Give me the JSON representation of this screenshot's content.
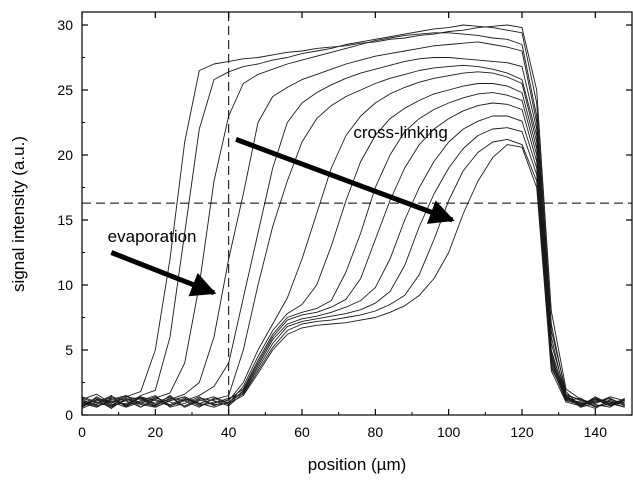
{
  "chart_data": {
    "type": "line",
    "title": "",
    "xlabel": "position (µm)",
    "ylabel": "signal intensity (a.u.)",
    "xlim": [
      0,
      150
    ],
    "ylim": [
      0,
      31
    ],
    "xticks": [
      0,
      20,
      40,
      60,
      80,
      100,
      120,
      140
    ],
    "yticks": [
      0,
      5,
      10,
      15,
      20,
      25,
      30
    ],
    "x_tick_labels": [
      "0",
      "20",
      "40",
      "60",
      "80",
      "100",
      "120",
      "140"
    ],
    "y_tick_labels": [
      "0",
      "5",
      "10",
      "15",
      "20",
      "25",
      "30"
    ],
    "grid": false,
    "legend": "none",
    "reference_lines": [
      {
        "orientation": "vertical",
        "value": 40,
        "style": "dashed"
      },
      {
        "orientation": "horizontal",
        "value": 16.3,
        "style": "dashed"
      }
    ],
    "annotations": [
      {
        "text": "cross-linking",
        "x": 74,
        "y": 21.3,
        "arrow_from": [
          42,
          21.2
        ],
        "arrow_to": [
          101,
          15
        ]
      },
      {
        "text": "evaporation",
        "x": 7,
        "y": 13.3,
        "arrow_from": [
          8,
          12.5
        ],
        "arrow_to": [
          36,
          9.4
        ]
      }
    ],
    "series": [
      {
        "x": [
          0,
          4,
          8,
          12,
          16,
          20,
          24,
          28,
          32,
          36,
          40,
          44,
          48,
          52,
          56,
          60,
          64,
          68,
          72,
          76,
          80,
          84,
          88,
          92,
          96,
          100,
          104,
          108,
          112,
          116,
          120,
          124,
          128,
          132,
          136,
          140,
          144,
          148
        ],
        "y": [
          1.2,
          1.6,
          0.9,
          1.4,
          1.8,
          5,
          12,
          21,
          26.5,
          27,
          27.2,
          27.4,
          27.5,
          27.7,
          27.9,
          28,
          28.2,
          28.3,
          28.4,
          28.6,
          28.7,
          28.9,
          29,
          29.2,
          29.3,
          29.5,
          29.6,
          29.8,
          29.9,
          30,
          29.8,
          25,
          8,
          2,
          1.2,
          0.9,
          1.4,
          1.1
        ]
      },
      {
        "x": [
          0,
          4,
          8,
          12,
          16,
          20,
          24,
          28,
          32,
          36,
          40,
          44,
          48,
          52,
          56,
          60,
          64,
          68,
          72,
          76,
          80,
          84,
          88,
          92,
          96,
          100,
          104,
          108,
          112,
          116,
          120,
          124,
          128,
          132,
          136,
          140,
          144,
          148
        ],
        "y": [
          0.8,
          1.1,
          1.3,
          0.7,
          1.5,
          1.9,
          6,
          14,
          22,
          25.8,
          26.4,
          26.8,
          27,
          27.3,
          27.5,
          27.8,
          28,
          28.2,
          28.5,
          28.7,
          28.9,
          29.1,
          29.3,
          29.5,
          29.7,
          29.8,
          30,
          29.9,
          29.8,
          29.6,
          29.4,
          24,
          7,
          1.5,
          0.8,
          1.2,
          0.7,
          1
        ]
      },
      {
        "x": [
          0,
          4,
          8,
          12,
          16,
          20,
          24,
          28,
          32,
          36,
          40,
          44,
          48,
          52,
          56,
          60,
          64,
          68,
          72,
          76,
          80,
          84,
          88,
          92,
          96,
          100,
          104,
          108,
          112,
          116,
          120,
          124,
          128,
          132,
          136,
          140,
          144,
          148
        ],
        "y": [
          1,
          0.6,
          1.2,
          1.5,
          0.9,
          1.3,
          1.7,
          4,
          10,
          18,
          23,
          25.5,
          26.2,
          26.6,
          27,
          27.3,
          27.6,
          27.9,
          28.2,
          28.5,
          28.8,
          29,
          29.2,
          29.3,
          29.4,
          29.4,
          29.3,
          29.2,
          29,
          28.9,
          28.5,
          23,
          6.5,
          1.8,
          0.6,
          1.3,
          1,
          0.8
        ]
      },
      {
        "x": [
          0,
          4,
          8,
          12,
          16,
          20,
          24,
          28,
          32,
          36,
          40,
          44,
          48,
          52,
          56,
          60,
          64,
          68,
          72,
          76,
          80,
          84,
          88,
          92,
          96,
          100,
          104,
          108,
          112,
          116,
          120,
          124,
          128,
          132,
          136,
          140,
          144,
          148
        ],
        "y": [
          0.5,
          1,
          0.7,
          1.1,
          1.4,
          0.8,
          1.2,
          1.6,
          2.5,
          6,
          12,
          17,
          22.5,
          24.5,
          25.2,
          25.8,
          26.2,
          26.6,
          27,
          27.3,
          27.6,
          27.8,
          28,
          28.2,
          28.4,
          28.5,
          28.6,
          28.7,
          28.5,
          28.3,
          28,
          22.5,
          6,
          1.2,
          0.9,
          0.5,
          1.2,
          0.9
        ]
      },
      {
        "x": [
          0,
          4,
          8,
          12,
          16,
          20,
          24,
          28,
          32,
          36,
          40,
          44,
          48,
          52,
          56,
          60,
          64,
          68,
          72,
          76,
          80,
          84,
          88,
          92,
          96,
          100,
          104,
          108,
          112,
          116,
          120,
          124,
          128,
          132,
          136,
          140,
          144,
          148
        ],
        "y": [
          1.3,
          0.9,
          1.5,
          0.6,
          1,
          1.4,
          0.7,
          1.1,
          1.5,
          2.2,
          4,
          9,
          14,
          19,
          22.5,
          24,
          24.8,
          25.4,
          25.9,
          26.3,
          26.6,
          26.9,
          27.2,
          27.4,
          27.5,
          27.5,
          27.4,
          27.3,
          27.2,
          27.1,
          26.8,
          22,
          5.5,
          1.6,
          1.1,
          0.8,
          0.6,
          1.3
        ]
      },
      {
        "x": [
          0,
          4,
          8,
          12,
          16,
          20,
          24,
          28,
          32,
          36,
          40,
          44,
          48,
          52,
          56,
          60,
          64,
          68,
          72,
          76,
          80,
          84,
          88,
          92,
          96,
          100,
          104,
          108,
          112,
          116,
          120,
          124,
          128,
          132,
          136,
          140,
          144,
          148
        ],
        "y": [
          0.7,
          1.2,
          0.5,
          1.3,
          0.8,
          0.6,
          1.1,
          1.4,
          0.9,
          1.2,
          1.5,
          5,
          10,
          14.5,
          18,
          21,
          22.8,
          23.8,
          24.5,
          25,
          25.5,
          25.9,
          26.2,
          26.5,
          26.7,
          26.8,
          26.9,
          26.8,
          26.6,
          26.3,
          25.8,
          21.5,
          5,
          1.3,
          0.7,
          1.1,
          0.9,
          0.6
        ]
      },
      {
        "x": [
          0,
          4,
          8,
          12,
          16,
          20,
          24,
          28,
          32,
          36,
          40,
          44,
          48,
          52,
          56,
          60,
          64,
          68,
          72,
          76,
          80,
          84,
          88,
          92,
          96,
          100,
          104,
          108,
          112,
          116,
          120,
          124,
          128,
          132,
          136,
          140,
          144,
          148
        ],
        "y": [
          1.1,
          0.7,
          1,
          1.5,
          0.6,
          1.2,
          0.8,
          1.3,
          0.7,
          1,
          1.1,
          2.5,
          5,
          7,
          9,
          12,
          15.5,
          19,
          21.5,
          23,
          24,
          24.7,
          25.2,
          25.6,
          25.9,
          26.1,
          26.3,
          26.4,
          26.3,
          26,
          25.5,
          21,
          4.8,
          1.5,
          1.2,
          0.6,
          1.1,
          0.8
        ]
      },
      {
        "x": [
          0,
          4,
          8,
          12,
          16,
          20,
          24,
          28,
          32,
          36,
          40,
          44,
          48,
          52,
          56,
          60,
          64,
          68,
          72,
          76,
          80,
          84,
          88,
          92,
          96,
          100,
          104,
          108,
          112,
          116,
          120,
          124,
          128,
          132,
          136,
          140,
          144,
          148
        ],
        "y": [
          0.6,
          1.4,
          0.8,
          0.9,
          1.3,
          0.7,
          1.5,
          0.6,
          1.2,
          0.8,
          0.9,
          2.2,
          4.5,
          6.5,
          7.8,
          8.5,
          10,
          13,
          16.5,
          19.5,
          21.5,
          22.8,
          23.6,
          24.2,
          24.7,
          25,
          25.3,
          25.5,
          25.5,
          25.3,
          24.8,
          20.5,
          4.6,
          1.1,
          0.8,
          1.3,
          0.7,
          1.2
        ]
      },
      {
        "x": [
          0,
          4,
          8,
          12,
          16,
          20,
          24,
          28,
          32,
          36,
          40,
          44,
          48,
          52,
          56,
          60,
          64,
          68,
          72,
          76,
          80,
          84,
          88,
          92,
          96,
          100,
          104,
          108,
          112,
          116,
          120,
          124,
          128,
          132,
          136,
          140,
          144,
          148
        ],
        "y": [
          0.9,
          0.6,
          1.3,
          0.7,
          1.1,
          1.5,
          0.6,
          0.9,
          1.4,
          0.7,
          1.2,
          2,
          4.2,
          6.2,
          7.5,
          7.9,
          8.2,
          8.8,
          11,
          14,
          17.5,
          20,
          21.8,
          22.8,
          23.5,
          24,
          24.4,
          24.7,
          24.8,
          24.6,
          24.2,
          20,
          4.4,
          1.4,
          0.6,
          0.9,
          1.3,
          0.7
        ]
      },
      {
        "x": [
          0,
          4,
          8,
          12,
          16,
          20,
          24,
          28,
          32,
          36,
          40,
          44,
          48,
          52,
          56,
          60,
          64,
          68,
          72,
          76,
          80,
          84,
          88,
          92,
          96,
          100,
          104,
          108,
          112,
          116,
          120,
          124,
          128,
          132,
          136,
          140,
          144,
          148
        ],
        "y": [
          1.4,
          1,
          0.6,
          1.2,
          0.9,
          0.7,
          1.3,
          1.1,
          0.6,
          1.3,
          0.8,
          1.9,
          4,
          6,
          7.3,
          7.7,
          7.9,
          8.3,
          8.9,
          10.5,
          13.5,
          16.5,
          19,
          20.8,
          22,
          22.8,
          23.4,
          23.8,
          24,
          23.9,
          23.5,
          19.5,
          4.2,
          1.2,
          1,
          0.7,
          0.8,
          1.1
        ]
      },
      {
        "x": [
          0,
          4,
          8,
          12,
          16,
          20,
          24,
          28,
          32,
          36,
          40,
          44,
          48,
          52,
          56,
          60,
          64,
          68,
          72,
          76,
          80,
          84,
          88,
          92,
          96,
          100,
          104,
          108,
          112,
          116,
          120,
          124,
          128,
          132,
          136,
          140,
          144,
          148
        ],
        "y": [
          0.6,
          1.2,
          1,
          0.6,
          1.4,
          1.1,
          0.7,
          1.2,
          0.9,
          0.6,
          1,
          1.8,
          3.8,
          5.8,
          7,
          7.4,
          7.6,
          7.9,
          8.3,
          8.8,
          9.8,
          12,
          15,
          17.5,
          19.5,
          21,
          22,
          22.6,
          23,
          23,
          22.6,
          19,
          4,
          1.3,
          0.7,
          1.2,
          1,
          0.6
        ]
      },
      {
        "x": [
          0,
          4,
          8,
          12,
          16,
          20,
          24,
          28,
          32,
          36,
          40,
          44,
          48,
          52,
          56,
          60,
          64,
          68,
          72,
          76,
          80,
          84,
          88,
          92,
          96,
          100,
          104,
          108,
          112,
          116,
          120,
          124,
          128,
          132,
          136,
          140,
          144,
          148
        ],
        "y": [
          1,
          0.8,
          1.4,
          1.1,
          0.6,
          1.3,
          1,
          0.7,
          1.3,
          1.1,
          0.7,
          1.7,
          3.6,
          5.5,
          6.8,
          7.2,
          7.4,
          7.6,
          7.8,
          8.1,
          8.6,
          9.5,
          11.5,
          14.5,
          17,
          19,
          20.5,
          21.5,
          22,
          22.1,
          21.8,
          18.5,
          3.8,
          1.1,
          1.3,
          0.6,
          0.9,
          1.2
        ]
      },
      {
        "x": [
          0,
          4,
          8,
          12,
          16,
          20,
          24,
          28,
          32,
          36,
          40,
          44,
          48,
          52,
          56,
          60,
          64,
          68,
          72,
          76,
          80,
          84,
          88,
          92,
          96,
          100,
          104,
          108,
          112,
          116,
          120,
          124,
          128,
          132,
          136,
          140,
          144,
          148
        ],
        "y": [
          0.8,
          1.3,
          0.7,
          1.4,
          1.2,
          0.6,
          1.1,
          1.4,
          0.8,
          0.9,
          1.3,
          1.6,
          3.4,
          5.2,
          6.5,
          7,
          7.2,
          7.3,
          7.5,
          7.7,
          8,
          8.5,
          9.2,
          10.8,
          13.5,
          16.5,
          18.8,
          20.2,
          21,
          21.2,
          20.8,
          18,
          3.6,
          1.4,
          0.9,
          1,
          1.3,
          0.7
        ]
      },
      {
        "x": [
          0,
          4,
          8,
          12,
          16,
          20,
          24,
          28,
          32,
          36,
          40,
          44,
          48,
          52,
          56,
          60,
          64,
          68,
          72,
          76,
          80,
          84,
          88,
          92,
          96,
          100,
          104,
          108,
          112,
          116,
          120,
          124,
          128,
          132,
          136,
          140,
          144,
          148
        ],
        "y": [
          1.2,
          0.7,
          1.1,
          0.8,
          1.3,
          0.9,
          1.4,
          0.6,
          1.1,
          1.4,
          0.9,
          1.5,
          3.2,
          5,
          6.2,
          6.7,
          6.9,
          7,
          7.1,
          7.3,
          7.5,
          7.9,
          8.4,
          9.2,
          10.5,
          12.5,
          15.5,
          18,
          19.8,
          20.8,
          20.6,
          17.5,
          3.4,
          1,
          0.7,
          1.4,
          0.8,
          1.1
        ]
      }
    ]
  }
}
